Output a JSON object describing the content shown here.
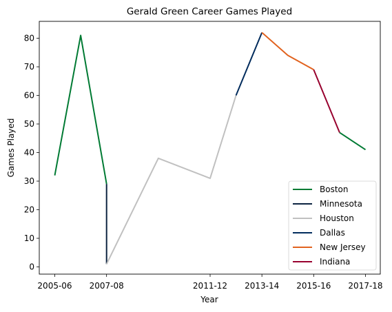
{
  "chart_data": {
    "type": "line",
    "title": "Gerald Green Career Games Played",
    "xlabel": "Year",
    "ylabel": "Games Played",
    "x_ticks": [
      "2005-06",
      "2007-08",
      "2011-12",
      "2013-14",
      "2015-16",
      "2017-18"
    ],
    "y_ticks": [
      0,
      10,
      20,
      30,
      40,
      50,
      60,
      70,
      80
    ],
    "grid": false,
    "legend_position": "lower-right",
    "series": [
      {
        "name": "Boston",
        "color": "#007a33",
        "points": [
          [
            "2005-06",
            32
          ],
          [
            "2006-07",
            81
          ],
          [
            "2007-08",
            29
          ],
          [
            "2007-08",
            29
          ]
        ],
        "extra_segment": [
          [
            "2016-17",
            47
          ],
          [
            "2017-18",
            41
          ]
        ]
      },
      {
        "name": "Minnesota",
        "color": "#0c2340",
        "points": [
          [
            "2007-08",
            29
          ],
          [
            "2007-08",
            1
          ]
        ]
      },
      {
        "name": "Houston",
        "color": "#c0c0c0",
        "points": [
          [
            "2007-08",
            1
          ],
          [
            "2009-10",
            38
          ],
          [
            "2011-12",
            31
          ],
          [
            "2012-13",
            60
          ]
        ]
      },
      {
        "name": "Dallas",
        "color": "#002b5c",
        "points": [
          [
            "2012-13",
            60
          ],
          [
            "2013-14",
            82
          ]
        ]
      },
      {
        "name": "New Jersey",
        "color": "#e1621e",
        "points": [
          [
            "2013-14",
            82
          ],
          [
            "2014-15",
            74
          ],
          [
            "2015-16",
            69
          ]
        ]
      },
      {
        "name": "Indiana",
        "color": "#98002e",
        "points": [
          [
            "2015-16",
            69
          ],
          [
            "2016-17",
            47
          ]
        ]
      }
    ]
  }
}
